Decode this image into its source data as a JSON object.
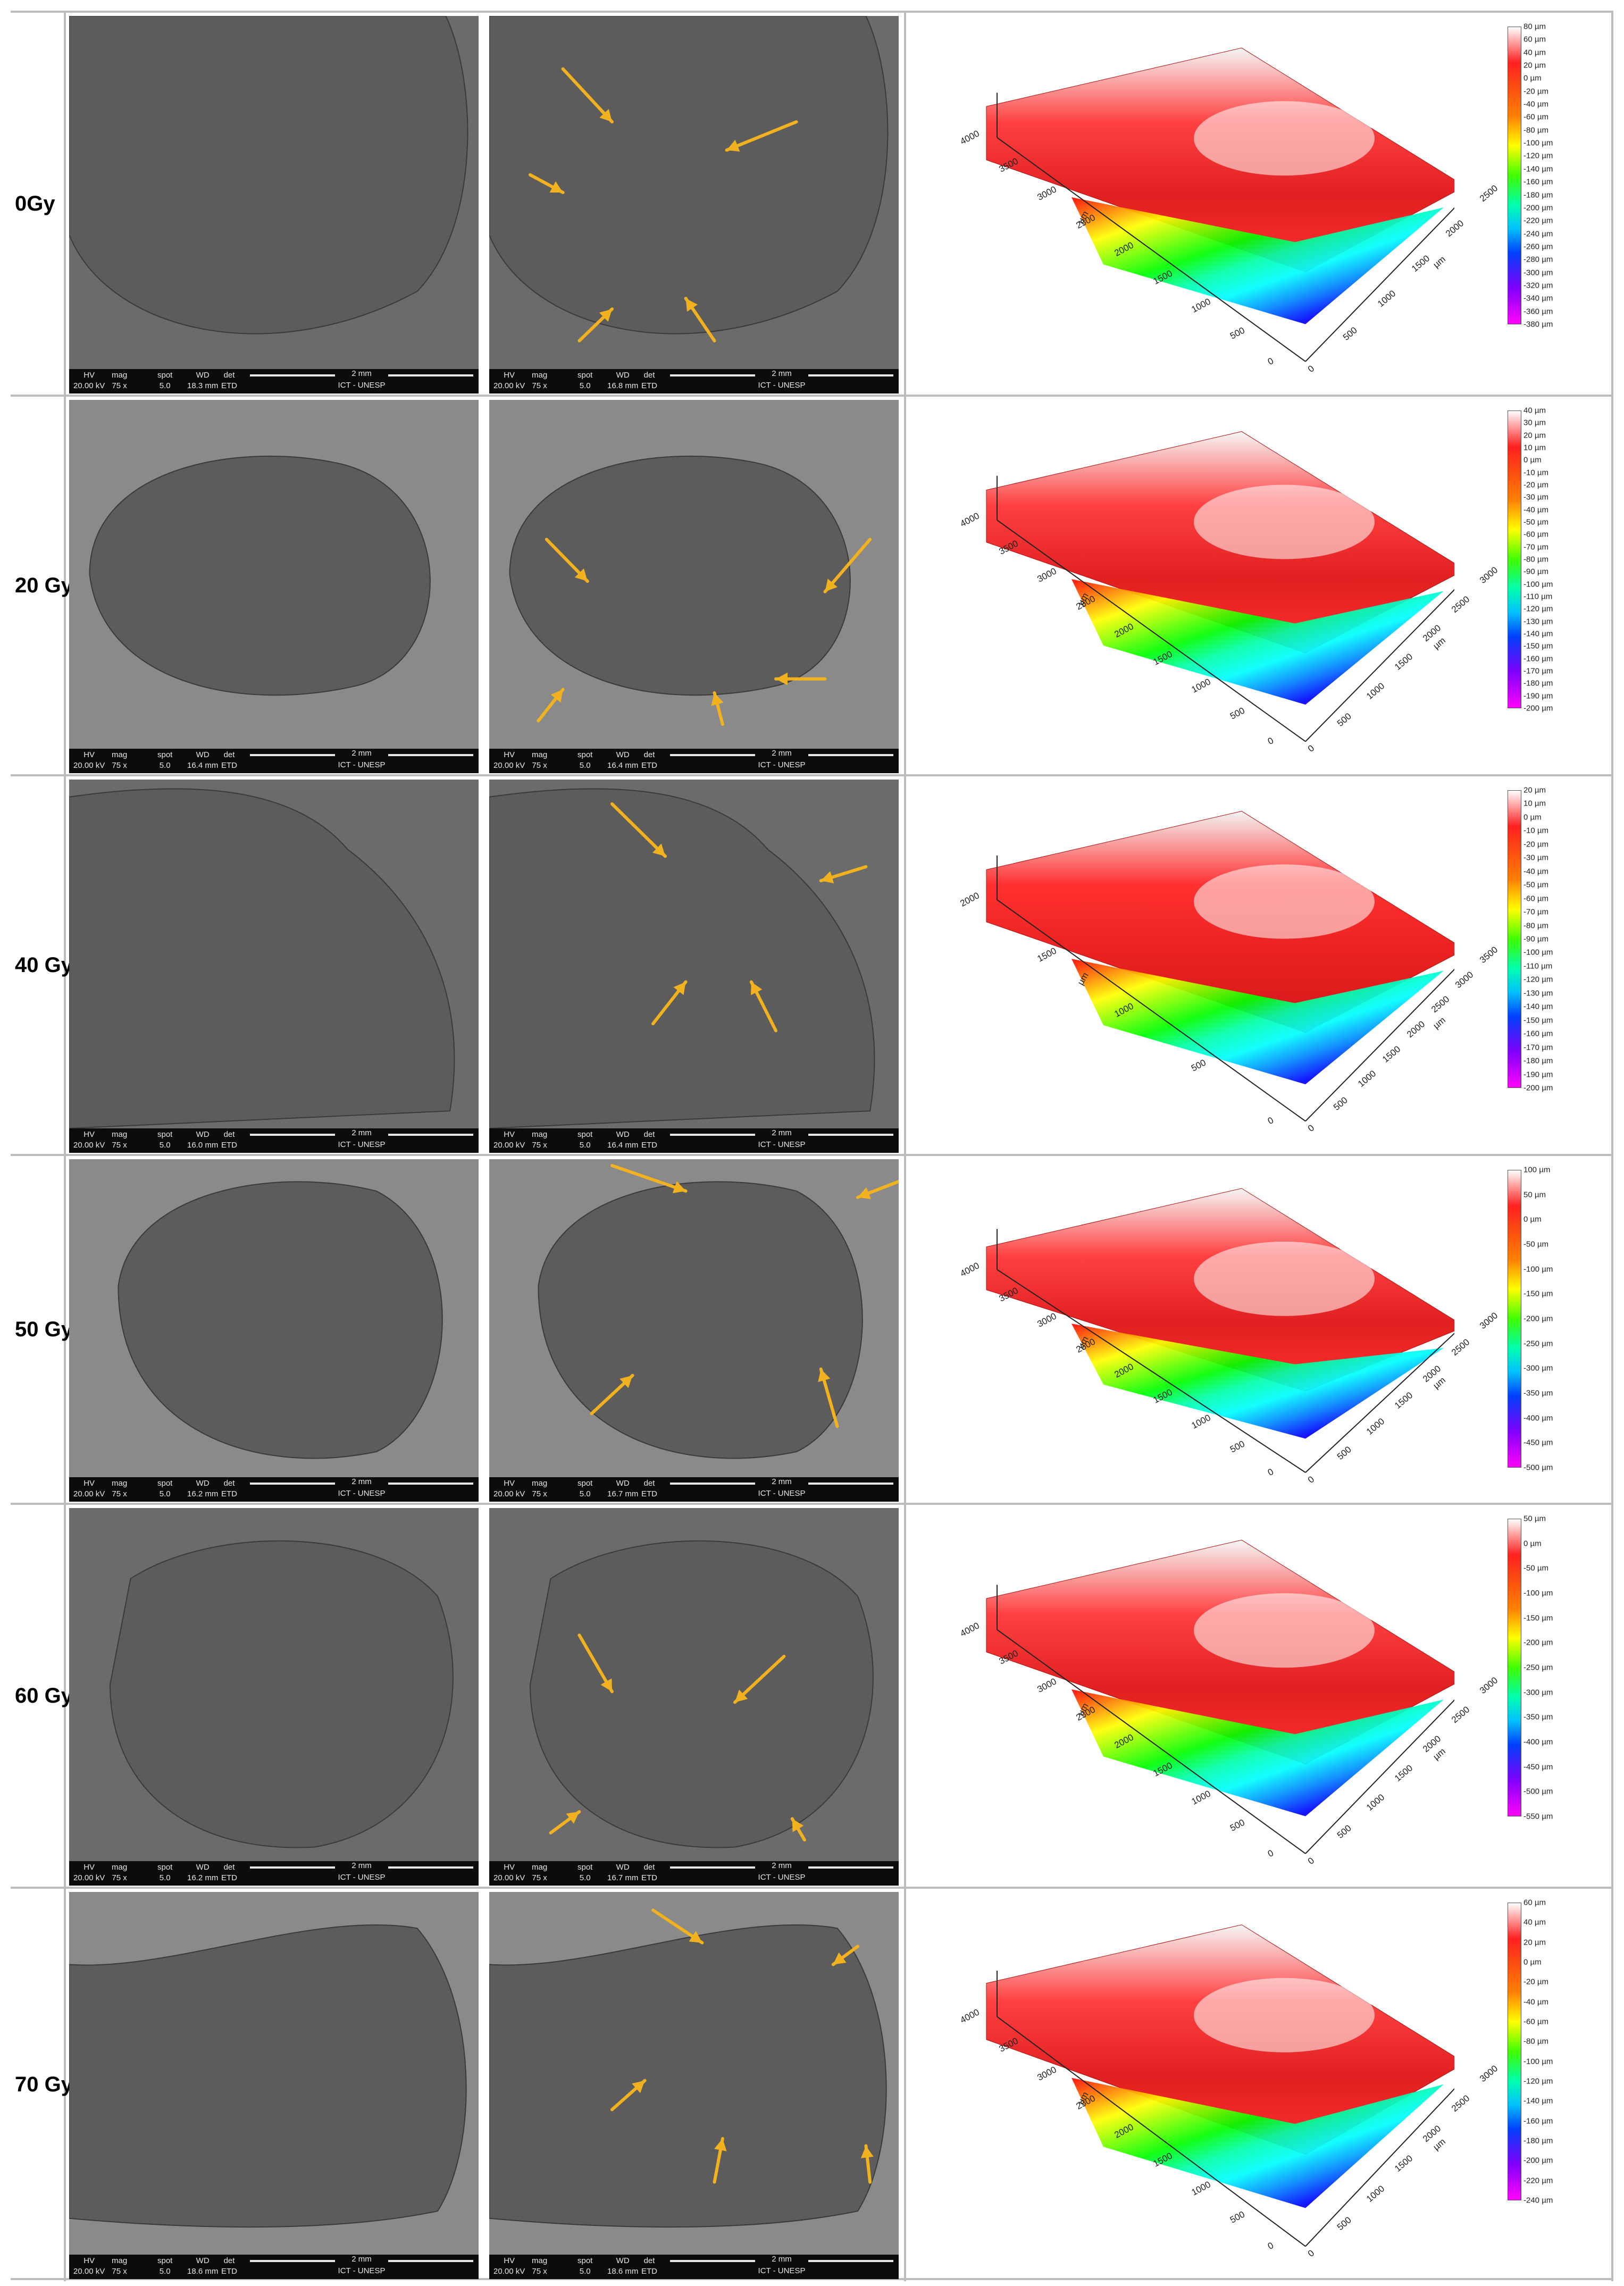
{
  "figure": {
    "colors": {
      "arrow": "#f2b21f",
      "sem_bg": "#4d4d4d",
      "sem_surface": "#5c5c5c",
      "scalebar_bg": "#0c0c0c"
    },
    "sem_bar": {
      "headers": [
        "HV",
        "mag",
        "spot",
        "WD",
        "det"
      ],
      "scale": "2 mm",
      "institution": "ICT - UNESP"
    },
    "rows": [
      {
        "dose": "0Gy",
        "sem_left": {
          "hv": "20.00 kV",
          "mag": "75 x",
          "spot": "5.0",
          "wd": "18.3 mm",
          "det": "ETD"
        },
        "sem_right": {
          "hv": "20.00 kV",
          "mag": "75 x",
          "spot": "5.0",
          "wd": "16.8 mm",
          "det": "ETD"
        },
        "colorbar": [
          "80 µm",
          "60 µm",
          "40 µm",
          "20 µm",
          "0 µm",
          "-20 µm",
          "-40 µm",
          "-60 µm",
          "-80 µm",
          "-100 µm",
          "-120 µm",
          "-140 µm",
          "-160 µm",
          "-180 µm",
          "-200 µm",
          "-220 µm",
          "-240 µm",
          "-260 µm",
          "-280 µm",
          "-300 µm",
          "-320 µm",
          "-340 µm",
          "-360 µm",
          "-380 µm"
        ],
        "y_ticks": [
          "4000",
          "3500",
          "3000",
          "2500",
          "2000",
          "1500",
          "1000",
          "500",
          "0"
        ],
        "x_ticks": [
          "0",
          "500",
          "1000",
          "1500",
          "2000",
          "2500"
        ],
        "unit": "µm"
      },
      {
        "dose": "20 Gy",
        "sem_left": {
          "hv": "20.00 kV",
          "mag": "75 x",
          "spot": "5.0",
          "wd": "16.4 mm",
          "det": "ETD"
        },
        "sem_right": {
          "hv": "20.00 kV",
          "mag": "75 x",
          "spot": "5.0",
          "wd": "16.4 mm",
          "det": "ETD"
        },
        "colorbar": [
          "40 µm",
          "30 µm",
          "20 µm",
          "10 µm",
          "0 µm",
          "-10 µm",
          "-20 µm",
          "-30 µm",
          "-40 µm",
          "-50 µm",
          "-60 µm",
          "-70 µm",
          "-80 µm",
          "-90 µm",
          "-100 µm",
          "-110 µm",
          "-120 µm",
          "-130 µm",
          "-140 µm",
          "-150 µm",
          "-160 µm",
          "-170 µm",
          "-180 µm",
          "-190 µm",
          "-200 µm"
        ],
        "y_ticks": [
          "4000",
          "3500",
          "3000",
          "2500",
          "2000",
          "1500",
          "1000",
          "500",
          "0"
        ],
        "x_ticks": [
          "0",
          "500",
          "1000",
          "1500",
          "2000",
          "2500",
          "3000"
        ],
        "unit": "µm"
      },
      {
        "dose": "40 Gy",
        "sem_left": {
          "hv": "20.00 kV",
          "mag": "75 x",
          "spot": "5.0",
          "wd": "16.0 mm",
          "det": "ETD"
        },
        "sem_right": {
          "hv": "20.00 kV",
          "mag": "75 x",
          "spot": "5.0",
          "wd": "16.4 mm",
          "det": "ETD"
        },
        "colorbar": [
          "20 µm",
          "10 µm",
          "0 µm",
          "-10 µm",
          "-20 µm",
          "-30 µm",
          "-40 µm",
          "-50 µm",
          "-60 µm",
          "-70 µm",
          "-80 µm",
          "-90 µm",
          "-100 µm",
          "-110 µm",
          "-120 µm",
          "-130 µm",
          "-140 µm",
          "-150 µm",
          "-160 µm",
          "-170 µm",
          "-180 µm",
          "-190 µm",
          "-200 µm"
        ],
        "y_ticks": [
          "2000",
          "1500",
          "1000",
          "500",
          "0"
        ],
        "x_ticks": [
          "0",
          "500",
          "1000",
          "1500",
          "2000",
          "2500",
          "3000",
          "3500"
        ],
        "unit": "µm"
      },
      {
        "dose": "50 Gy",
        "sem_left": {
          "hv": "20.00 kV",
          "mag": "75 x",
          "spot": "5.0",
          "wd": "16.2 mm",
          "det": "ETD"
        },
        "sem_right": {
          "hv": "20.00 kV",
          "mag": "75 x",
          "spot": "5.0",
          "wd": "16.7 mm",
          "det": "ETD"
        },
        "colorbar": [
          "100 µm",
          "50 µm",
          "0 µm",
          "-50 µm",
          "-100 µm",
          "-150 µm",
          "-200 µm",
          "-250 µm",
          "-300 µm",
          "-350 µm",
          "-400 µm",
          "-450 µm",
          "-500 µm"
        ],
        "y_ticks": [
          "4000",
          "3500",
          "3000",
          "2500",
          "2000",
          "1500",
          "1000",
          "500",
          "0"
        ],
        "x_ticks": [
          "0",
          "500",
          "1000",
          "1500",
          "2000",
          "2500",
          "3000"
        ],
        "unit": "µm"
      },
      {
        "dose": "60 Gy",
        "sem_left": {
          "hv": "20.00 kV",
          "mag": "75 x",
          "spot": "5.0",
          "wd": "16.2 mm",
          "det": "ETD"
        },
        "sem_right": {
          "hv": "20.00 kV",
          "mag": "75 x",
          "spot": "5.0",
          "wd": "16.7 mm",
          "det": "ETD"
        },
        "colorbar": [
          "50 µm",
          "0 µm",
          "-50 µm",
          "-100 µm",
          "-150 µm",
          "-200 µm",
          "-250 µm",
          "-300 µm",
          "-350 µm",
          "-400 µm",
          "-450 µm",
          "-500 µm",
          "-550 µm"
        ],
        "y_ticks": [
          "4000",
          "3500",
          "3000",
          "2500",
          "2000",
          "1500",
          "1000",
          "500",
          "0"
        ],
        "x_ticks": [
          "0",
          "500",
          "1000",
          "1500",
          "2000",
          "2500",
          "3000"
        ],
        "unit": "µm"
      },
      {
        "dose": "70 Gy",
        "sem_left": {
          "hv": "20.00 kV",
          "mag": "75 x",
          "spot": "5.0",
          "wd": "18.6 mm",
          "det": "ETD"
        },
        "sem_right": {
          "hv": "20.00 kV",
          "mag": "75 x",
          "spot": "5.0",
          "wd": "18.6 mm",
          "det": "ETD"
        },
        "colorbar": [
          "60 µm",
          "40 µm",
          "20 µm",
          "0 µm",
          "-20 µm",
          "-40 µm",
          "-60 µm",
          "-80 µm",
          "-100 µm",
          "-120 µm",
          "-140 µm",
          "-160 µm",
          "-180 µm",
          "-200 µm",
          "-220 µm",
          "-240 µm"
        ],
        "y_ticks": [
          "4000",
          "3500",
          "3000",
          "2500",
          "2000",
          "1500",
          "1000",
          "500",
          "0"
        ],
        "x_ticks": [
          "0",
          "500",
          "1000",
          "1500",
          "2000",
          "2500",
          "3000"
        ],
        "unit": "µm"
      }
    ]
  }
}
